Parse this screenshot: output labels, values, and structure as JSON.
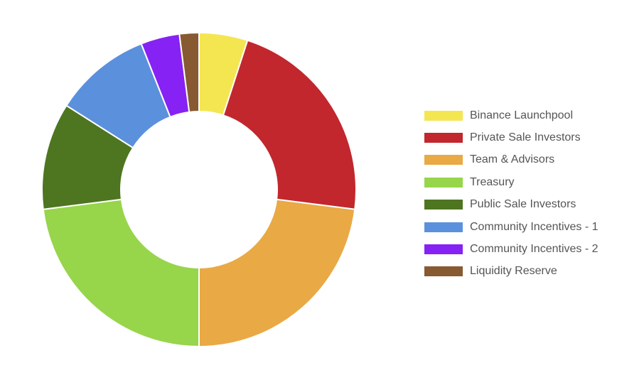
{
  "chart_data": {
    "type": "pie",
    "donut": true,
    "legend_position": "right",
    "series": [
      {
        "label": "Binance Launchpool",
        "value": 5,
        "color": "#f4e651"
      },
      {
        "label": "Private Sale Investors",
        "value": 22,
        "color": "#c1272d"
      },
      {
        "label": "Team & Advisors",
        "value": 23,
        "color": "#e9a944"
      },
      {
        "label": "Treasury",
        "value": 23,
        "color": "#97d54b"
      },
      {
        "label": "Public Sale Investors",
        "value": 11,
        "color": "#4e7520"
      },
      {
        "label": "Community Incentives - 1",
        "value": 10,
        "color": "#5b90dd"
      },
      {
        "label": "Community Incentives - 2",
        "value": 4,
        "color": "#8622f4"
      },
      {
        "label": "Liquidity Reserve",
        "value": 2,
        "color": "#875a32"
      }
    ]
  }
}
